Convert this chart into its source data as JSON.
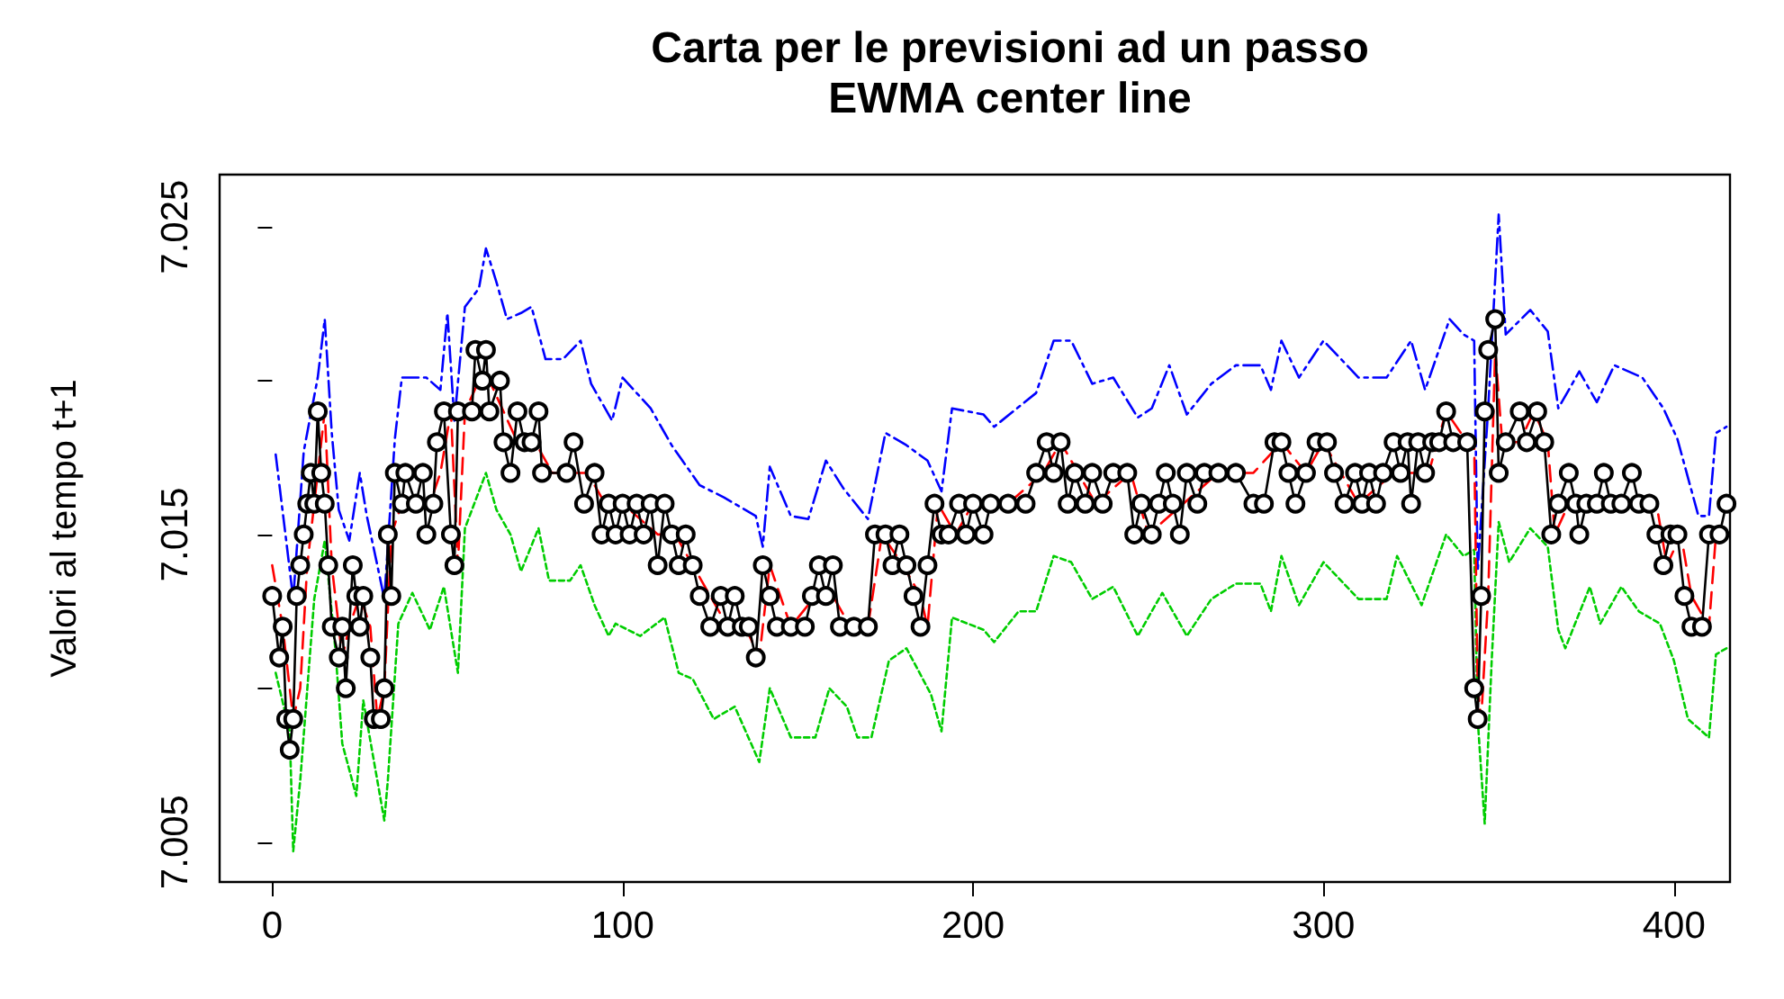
{
  "chart_data": {
    "type": "line",
    "title": "Carta per le previsioni ad un passo",
    "subtitle": "EWMA center line",
    "ylabel": "Valori al tempo t+1",
    "xlim": [
      -15,
      416
    ],
    "xticks": [
      0,
      100,
      200,
      300,
      400
    ],
    "ylim": [
      7.0037,
      7.0267
    ],
    "yticks": [
      7.005,
      {
        "value": 7.01,
        "label": null
      },
      7.015,
      {
        "value": 7.02,
        "label": null
      },
      7.025
    ],
    "grid": false,
    "series": [
      {
        "color": "#0000ff",
        "line_style": "dashdot",
        "marker": "none",
        "x": [
          1,
          4,
          6,
          9,
          13,
          15,
          17,
          19,
          22,
          25,
          27,
          30,
          32,
          35,
          37,
          40,
          44,
          48,
          50,
          52,
          55,
          59,
          61,
          64,
          67,
          71,
          74,
          78,
          83,
          88,
          91,
          97,
          100,
          108,
          114,
          122,
          129,
          138,
          140,
          142,
          148,
          153,
          158,
          163,
          170,
          175,
          181,
          187,
          191,
          194,
          203,
          206,
          218,
          223,
          228,
          234,
          240,
          247,
          251,
          256,
          261,
          268,
          275,
          282,
          285,
          288,
          293,
          300,
          305,
          310,
          318,
          325,
          329,
          336,
          340,
          343,
          344,
          347,
          350,
          352,
          359,
          364,
          367,
          373,
          378,
          383,
          391,
          397,
          401,
          407,
          410,
          412,
          415
        ],
        "values": [
          7.0176,
          7.0148,
          7.0129,
          7.0177,
          7.0201,
          7.022,
          7.0183,
          7.0158,
          7.0148,
          7.017,
          7.0156,
          7.014,
          7.0129,
          7.0181,
          7.0201,
          7.0201,
          7.0201,
          7.0197,
          7.0222,
          7.0187,
          7.0224,
          7.023,
          7.0243,
          7.0232,
          7.022,
          7.0222,
          7.0224,
          7.0207,
          7.0207,
          7.0213,
          7.0199,
          7.0187,
          7.0201,
          7.0191,
          7.0179,
          7.0166,
          7.0162,
          7.0156,
          7.0146,
          7.0172,
          7.0156,
          7.0155,
          7.0174,
          7.0165,
          7.0155,
          7.0183,
          7.0179,
          7.0174,
          7.0164,
          7.0191,
          7.0189,
          7.0185,
          7.0196,
          7.0213,
          7.0213,
          7.0199,
          7.0201,
          7.0188,
          7.0191,
          7.0205,
          7.0189,
          7.0199,
          7.0205,
          7.0205,
          7.0197,
          7.0213,
          7.0201,
          7.0213,
          7.0207,
          7.0201,
          7.0201,
          7.0213,
          7.0197,
          7.022,
          7.0215,
          7.0213,
          7.0138,
          7.0191,
          7.0254,
          7.0215,
          7.0223,
          7.0216,
          7.0191,
          7.0203,
          7.0193,
          7.0205,
          7.0201,
          7.0191,
          7.0181,
          7.0156,
          7.0156,
          7.0183,
          7.0185
        ]
      },
      {
        "color": "#00cd00",
        "line_style": "dotted",
        "marker": "none",
        "x": [
          1,
          5,
          6,
          8,
          12,
          15,
          18,
          20,
          24,
          26,
          30,
          32,
          33,
          36,
          40,
          45,
          49,
          53,
          55,
          61,
          64,
          68,
          71,
          76,
          79,
          85,
          88,
          92,
          96,
          98,
          105,
          112,
          116,
          120,
          126,
          132,
          139,
          142,
          148,
          155,
          159,
          164,
          167,
          171,
          176,
          181,
          188,
          191,
          194,
          203,
          206,
          213,
          218,
          223,
          228,
          234,
          240,
          247,
          254,
          261,
          268,
          275,
          282,
          285,
          288,
          293,
          300,
          305,
          310,
          318,
          321,
          328,
          335,
          340,
          343,
          344,
          346,
          348,
          350,
          353,
          359,
          364,
          367,
          369,
          376,
          379,
          385,
          390,
          396,
          400,
          404,
          410,
          412,
          415
        ],
        "values": [
          7.0105,
          7.0086,
          7.0047,
          7.007,
          7.0129,
          7.0148,
          7.0113,
          7.0082,
          7.0065,
          7.0096,
          7.007,
          7.0057,
          7.007,
          7.0121,
          7.0131,
          7.0119,
          7.0133,
          7.0105,
          7.0152,
          7.017,
          7.0158,
          7.015,
          7.0138,
          7.0152,
          7.0135,
          7.0135,
          7.014,
          7.0127,
          7.0117,
          7.0121,
          7.0117,
          7.0123,
          7.0105,
          7.0103,
          7.009,
          7.0094,
          7.0076,
          7.01,
          7.0084,
          7.0084,
          7.01,
          7.0094,
          7.0084,
          7.0084,
          7.0109,
          7.0113,
          7.0098,
          7.0086,
          7.0123,
          7.0119,
          7.0115,
          7.0125,
          7.0125,
          7.0143,
          7.0141,
          7.0129,
          7.0133,
          7.0117,
          7.0131,
          7.0117,
          7.0129,
          7.0134,
          7.0134,
          7.0125,
          7.0143,
          7.0127,
          7.0141,
          7.0135,
          7.0129,
          7.0129,
          7.0143,
          7.0127,
          7.015,
          7.0143,
          7.0145,
          7.009,
          7.0056,
          7.0109,
          7.0154,
          7.0141,
          7.0152,
          7.0146,
          7.0119,
          7.0113,
          7.0133,
          7.0121,
          7.0133,
          7.0125,
          7.0121,
          7.0109,
          7.009,
          7.0084,
          7.0111,
          7.0113
        ]
      },
      {
        "color": "#ff0000",
        "line_style": "dashed",
        "marker": "none",
        "x": [
          0,
          3,
          6,
          8,
          10,
          13,
          15,
          17,
          20,
          22,
          25,
          28,
          30,
          32,
          34,
          37,
          40,
          45,
          48,
          51,
          53,
          55,
          59,
          62,
          66,
          70,
          75,
          80,
          86,
          90,
          95,
          100,
          110,
          115,
          120,
          125,
          130,
          135,
          139,
          142,
          148,
          155,
          160,
          165,
          170,
          174,
          180,
          185,
          187,
          190,
          195,
          200,
          210,
          220,
          225,
          235,
          245,
          250,
          260,
          270,
          280,
          288,
          295,
          300,
          310,
          320,
          330,
          335,
          341,
          343,
          344,
          345,
          347,
          349,
          351,
          356,
          360,
          364,
          366,
          370,
          375,
          385,
          395,
          398,
          402,
          405,
          410,
          412,
          415
        ],
        "values": [
          7.014,
          7.012,
          7.009,
          7.01,
          7.014,
          7.017,
          7.019,
          7.014,
          7.011,
          7.012,
          7.013,
          7.012,
          7.009,
          7.01,
          7.015,
          7.016,
          7.016,
          7.016,
          7.017,
          7.019,
          7.014,
          7.019,
          7.02,
          7.02,
          7.019,
          7.018,
          7.018,
          7.017,
          7.017,
          7.017,
          7.016,
          7.016,
          7.015,
          7.015,
          7.014,
          7.013,
          7.012,
          7.012,
          7.011,
          7.014,
          7.012,
          7.013,
          7.013,
          7.012,
          7.012,
          7.015,
          7.014,
          7.013,
          7.012,
          7.016,
          7.015,
          7.016,
          7.016,
          7.017,
          7.018,
          7.016,
          7.017,
          7.015,
          7.016,
          7.017,
          7.017,
          7.018,
          7.017,
          7.018,
          7.016,
          7.017,
          7.017,
          7.019,
          7.018,
          7.018,
          7.01,
          7.009,
          7.013,
          7.021,
          7.018,
          7.018,
          7.019,
          7.018,
          7.015,
          7.016,
          7.016,
          7.016,
          7.016,
          7.014,
          7.015,
          7.013,
          7.012,
          7.015,
          7.015
        ]
      },
      {
        "color": "#000000",
        "line_style": "solid",
        "marker": "circle",
        "x": [
          0,
          2,
          3,
          4,
          5,
          6,
          7,
          8,
          9,
          10,
          11,
          12,
          13,
          14,
          15,
          16,
          17,
          19,
          20,
          21,
          23,
          24,
          25,
          26,
          28,
          29,
          31,
          32,
          33,
          34,
          35,
          37,
          38,
          41,
          43,
          44,
          46,
          47,
          49,
          51,
          52,
          53,
          57,
          58,
          60,
          61,
          62,
          65,
          66,
          68,
          70,
          72,
          74,
          76,
          77,
          84,
          86,
          89,
          92,
          94,
          96,
          98,
          100,
          102,
          104,
          106,
          108,
          110,
          112,
          114,
          116,
          118,
          120,
          122,
          125,
          128,
          130,
          132,
          134,
          136,
          138,
          140,
          142,
          144,
          148,
          152,
          154,
          156,
          158,
          160,
          162,
          166,
          170,
          172,
          175,
          177,
          179,
          181,
          183,
          185,
          187,
          189,
          191,
          193,
          196,
          198,
          200,
          203,
          205,
          210,
          215,
          218,
          221,
          223,
          225,
          227,
          229,
          232,
          234,
          237,
          240,
          244,
          246,
          248,
          251,
          253,
          255,
          257,
          259,
          261,
          264,
          266,
          270,
          275,
          280,
          283,
          286,
          288,
          290,
          292,
          295,
          298,
          301,
          303,
          306,
          309,
          311,
          313,
          315,
          317,
          320,
          322,
          324,
          325,
          327,
          329,
          331,
          333,
          335,
          337,
          341,
          343,
          344,
          345,
          346,
          347,
          349,
          350,
          352,
          356,
          358,
          361,
          363,
          365,
          367,
          370,
          372,
          373,
          375,
          378,
          380,
          382,
          385,
          388,
          390,
          393,
          395,
          397,
          399,
          401,
          403,
          405,
          408,
          410,
          413,
          415
        ],
        "values": [
          7.013,
          7.011,
          7.012,
          7.009,
          7.008,
          7.009,
          7.013,
          7.014,
          7.015,
          7.016,
          7.017,
          7.016,
          7.019,
          7.017,
          7.016,
          7.014,
          7.012,
          7.011,
          7.012,
          7.01,
          7.014,
          7.013,
          7.012,
          7.013,
          7.011,
          7.009,
          7.009,
          7.01,
          7.015,
          7.013,
          7.017,
          7.016,
          7.017,
          7.016,
          7.017,
          7.015,
          7.016,
          7.018,
          7.019,
          7.015,
          7.014,
          7.019,
          7.019,
          7.021,
          7.02,
          7.021,
          7.019,
          7.02,
          7.018,
          7.017,
          7.019,
          7.018,
          7.018,
          7.019,
          7.017,
          7.017,
          7.018,
          7.016,
          7.017,
          7.015,
          7.016,
          7.015,
          7.016,
          7.015,
          7.016,
          7.015,
          7.016,
          7.014,
          7.016,
          7.015,
          7.014,
          7.015,
          7.014,
          7.013,
          7.012,
          7.013,
          7.012,
          7.013,
          7.012,
          7.012,
          7.011,
          7.014,
          7.013,
          7.012,
          7.012,
          7.012,
          7.013,
          7.014,
          7.013,
          7.014,
          7.012,
          7.012,
          7.012,
          7.015,
          7.015,
          7.014,
          7.015,
          7.014,
          7.013,
          7.012,
          7.014,
          7.016,
          7.015,
          7.015,
          7.016,
          7.015,
          7.016,
          7.015,
          7.016,
          7.016,
          7.016,
          7.017,
          7.018,
          7.017,
          7.018,
          7.016,
          7.017,
          7.016,
          7.017,
          7.016,
          7.017,
          7.017,
          7.015,
          7.016,
          7.015,
          7.016,
          7.017,
          7.016,
          7.015,
          7.017,
          7.016,
          7.017,
          7.017,
          7.017,
          7.016,
          7.016,
          7.018,
          7.018,
          7.017,
          7.016,
          7.017,
          7.018,
          7.018,
          7.017,
          7.016,
          7.017,
          7.016,
          7.017,
          7.016,
          7.017,
          7.018,
          7.017,
          7.018,
          7.016,
          7.018,
          7.017,
          7.018,
          7.018,
          7.019,
          7.018,
          7.018,
          7.01,
          7.009,
          7.013,
          7.019,
          7.021,
          7.022,
          7.017,
          7.018,
          7.019,
          7.018,
          7.019,
          7.018,
          7.015,
          7.016,
          7.017,
          7.016,
          7.015,
          7.016,
          7.016,
          7.017,
          7.016,
          7.016,
          7.017,
          7.016,
          7.016,
          7.015,
          7.014,
          7.015,
          7.015,
          7.013,
          7.012,
          7.012,
          7.015,
          7.015,
          7.016
        ]
      }
    ]
  }
}
